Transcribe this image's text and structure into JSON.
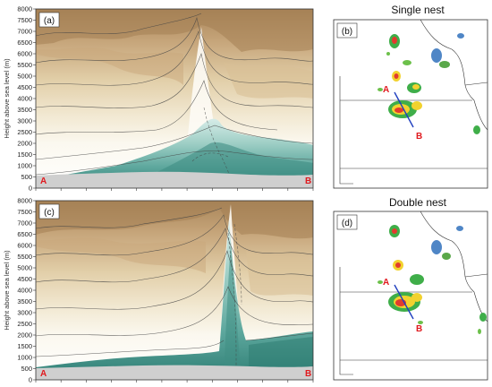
{
  "figure": {
    "panels": [
      {
        "id": "a",
        "label": "(a)"
      },
      {
        "id": "b",
        "label": "(b)",
        "title": "Single nest"
      },
      {
        "id": "c",
        "label": "(c)"
      },
      {
        "id": "d",
        "label": "(d)",
        "title": "Double nest"
      }
    ],
    "cross_section_labels": {
      "start": "A",
      "end": "B"
    },
    "colors": {
      "dry": "#b58d5e",
      "moist": "#3e8f86",
      "terrain": "#cfcfcf",
      "section_line": "#1f3fbf",
      "label_red": "#e0191e"
    }
  },
  "chart_data": [
    {
      "type": "heatmap",
      "panel": "(a)",
      "ylabel": "Height above sea level (m)",
      "ylim": [
        0,
        8000
      ],
      "yticks": [
        0,
        500,
        1000,
        1500,
        2000,
        2500,
        3000,
        3500,
        4000,
        4500,
        5000,
        5500,
        6000,
        6500,
        7000,
        7500,
        8000
      ],
      "ytick_labels": [
        "0",
        "500",
        "1000",
        "1500",
        "2000",
        "2500",
        "3000",
        "3500",
        "4000",
        "4500",
        "5000",
        "5500",
        "6000",
        "6500",
        "7000",
        "7500",
        "8000"
      ],
      "x_endpoints": [
        "A",
        "B"
      ]
    },
    {
      "type": "heatmap",
      "panel": "(c)",
      "ylabel": "Height above sea level (m)",
      "ylim": [
        0,
        8000
      ],
      "yticks": [
        0,
        500,
        1000,
        1500,
        2000,
        2500,
        3000,
        3500,
        4000,
        4500,
        5000,
        5500,
        6000,
        6500,
        7000,
        7500,
        8000
      ],
      "ytick_labels": [
        "0",
        "500",
        "1000",
        "1500",
        "2000",
        "2500",
        "3000",
        "3500",
        "4000",
        "4500",
        "5000",
        "5500",
        "6000",
        "6500",
        "7000",
        "7500",
        "8000"
      ],
      "x_endpoints": [
        "A",
        "B"
      ]
    }
  ]
}
